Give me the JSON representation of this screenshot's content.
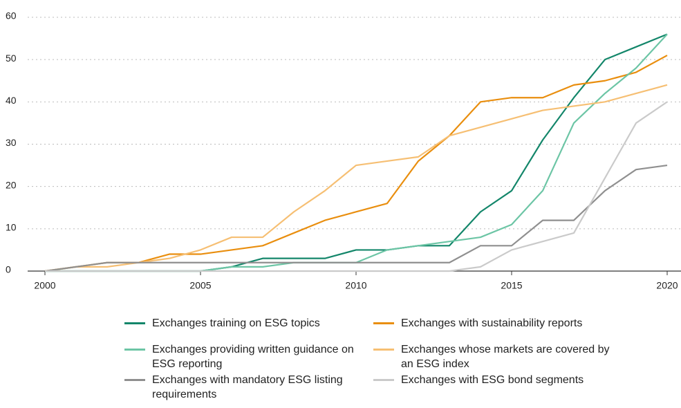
{
  "chart_data": {
    "type": "line",
    "x": [
      2000,
      2001,
      2002,
      2003,
      2004,
      2005,
      2006,
      2007,
      2008,
      2009,
      2010,
      2011,
      2012,
      2013,
      2014,
      2015,
      2016,
      2017,
      2018,
      2019,
      2020
    ],
    "xlim": [
      2000,
      2020
    ],
    "xticks": [
      2000,
      2005,
      2010,
      2015,
      2020
    ],
    "ylim": [
      0,
      60
    ],
    "yticks": [
      0,
      10,
      20,
      30,
      40,
      50,
      60
    ],
    "grid": true,
    "legend": "bottom",
    "series": [
      {
        "name": "Exchanges training on ESG topics",
        "color": "#13866a",
        "values": [
          0,
          0,
          0,
          0,
          0,
          0,
          1,
          3,
          3,
          3,
          5,
          5,
          6,
          6,
          14,
          19,
          31,
          41,
          50,
          53,
          56
        ]
      },
      {
        "name": "Exchanges with sustainability reports",
        "color": "#e98e0e",
        "values": [
          0,
          1,
          2,
          2,
          4,
          4,
          5,
          6,
          9,
          12,
          14,
          16,
          26,
          32,
          40,
          41,
          41,
          44,
          45,
          47,
          51
        ]
      },
      {
        "name": "Exchanges providing written guidance on ESG reporting",
        "color": "#6cc5a5",
        "values": [
          0,
          0,
          0,
          0,
          0,
          0,
          1,
          1,
          2,
          2,
          2,
          5,
          6,
          7,
          8,
          11,
          19,
          35,
          42,
          48,
          56
        ]
      },
      {
        "name": "Exchanges whose markets are covered by an ESG index",
        "color": "#f6bf73",
        "values": [
          0,
          1,
          1,
          2,
          3,
          5,
          8,
          8,
          14,
          19,
          25,
          26,
          27,
          32,
          34,
          36,
          38,
          39,
          40,
          42,
          44
        ]
      },
      {
        "name": "Exchanges with mandatory ESG listing requirements",
        "color": "#8f8f8f",
        "values": [
          0,
          1,
          2,
          2,
          2,
          2,
          2,
          2,
          2,
          2,
          2,
          2,
          2,
          2,
          6,
          6,
          12,
          12,
          19,
          24,
          25
        ]
      },
      {
        "name": "Exchanges with ESG bond segments",
        "color": "#cacaca",
        "values": [
          0,
          0,
          0,
          0,
          0,
          0,
          0,
          0,
          0,
          0,
          0,
          0,
          0,
          0,
          1,
          5,
          7,
          9,
          22,
          35,
          40
        ]
      }
    ]
  }
}
